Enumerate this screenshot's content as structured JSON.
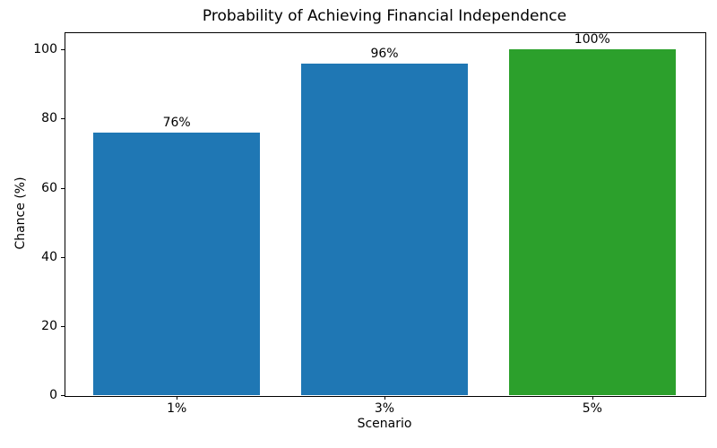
{
  "chart_data": {
    "type": "bar",
    "title": "Probability of Achieving Financial Independence",
    "xlabel": "Scenario",
    "ylabel": "Chance (%)",
    "categories": [
      "1%",
      "3%",
      "5%"
    ],
    "values": [
      76,
      96,
      100
    ],
    "bar_labels": [
      "76%",
      "96%",
      "100%"
    ],
    "bar_colors": [
      "#1f77b4",
      "#1f77b4",
      "#2ca02c"
    ],
    "yticks": [
      0,
      20,
      40,
      60,
      80,
      100
    ],
    "ylim": [
      0,
      105
    ],
    "grid": false,
    "legend": false,
    "bar_width_fraction": 0.8,
    "background_color": "#ffffff",
    "axis_color": "#000000",
    "text_color": "#000000"
  }
}
